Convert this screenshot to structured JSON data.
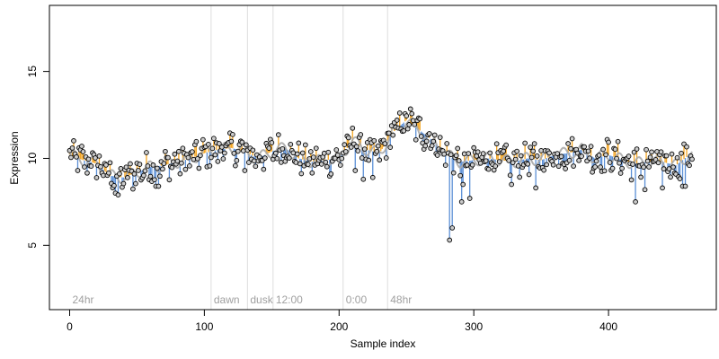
{
  "chart_data": {
    "type": "scatter",
    "title": "",
    "xlabel": "Sample index",
    "ylabel": "Expression",
    "xlim": [
      -15,
      480
    ],
    "ylim": [
      1.3,
      18.8
    ],
    "xticks": [
      0,
      100,
      200,
      300,
      400
    ],
    "yticks": [
      5,
      10,
      15
    ],
    "grid": false,
    "colors": {
      "above_line": "#f5a623",
      "below_line": "#5b8fd6",
      "smooth_line": "#a8a8a8",
      "divider": "#dddddd",
      "point_fill": "#cccccc",
      "point_stroke": "#000000"
    },
    "regions": [
      {
        "label": "24hr",
        "x": 0
      },
      {
        "label": "dawn",
        "x": 105
      },
      {
        "label": "dusk",
        "x": 132
      },
      {
        "label": "12:00",
        "x": 151
      },
      {
        "label": "0:00",
        "x": 203
      },
      {
        "label": "48hr",
        "x": 236
      }
    ],
    "trend": {
      "x": [
        0,
        10,
        20,
        30,
        40,
        50,
        60,
        70,
        80,
        90,
        100,
        110,
        120,
        130,
        140,
        150,
        160,
        170,
        180,
        190,
        200,
        210,
        220,
        230,
        240,
        250,
        260,
        270,
        280,
        290,
        300,
        310,
        320,
        330,
        340,
        350,
        360,
        370,
        380,
        390,
        400,
        410,
        420,
        430,
        440,
        450,
        460
      ],
      "y": [
        10.2,
        9.9,
        9.7,
        9.0,
        8.9,
        9.2,
        9.5,
        9.6,
        9.8,
        10.0,
        10.3,
        10.5,
        10.6,
        10.4,
        10.0,
        10.4,
        10.6,
        10.0,
        9.8,
        9.9,
        10.0,
        11.0,
        10.5,
        10.3,
        11.5,
        12.2,
        11.6,
        11.0,
        10.2,
        9.8,
        9.9,
        10.0,
        9.9,
        9.8,
        10.0,
        9.9,
        10.2,
        10.3,
        10.5,
        10.0,
        10.2,
        9.9,
        9.7,
        9.8,
        9.8,
        9.6,
        10.2
      ]
    },
    "spikes": [
      {
        "x": 130,
        "y": 9.3
      },
      {
        "x": 218,
        "y": 8.8
      },
      {
        "x": 282,
        "y": 5.3
      },
      {
        "x": 284,
        "y": 6.0
      },
      {
        "x": 291,
        "y": 7.5
      },
      {
        "x": 297,
        "y": 7.7
      },
      {
        "x": 292,
        "y": 8.5
      },
      {
        "x": 328,
        "y": 8.5
      },
      {
        "x": 346,
        "y": 8.3
      },
      {
        "x": 420,
        "y": 7.5
      },
      {
        "x": 427,
        "y": 8.2
      },
      {
        "x": 440,
        "y": 8.3
      },
      {
        "x": 455,
        "y": 8.4
      },
      {
        "x": 457,
        "y": 8.4
      },
      {
        "x": 64,
        "y": 8.4
      },
      {
        "x": 66,
        "y": 8.4
      },
      {
        "x": 34,
        "y": 8.0
      },
      {
        "x": 36,
        "y": 7.9
      },
      {
        "x": 225,
        "y": 8.9
      },
      {
        "x": 212,
        "y": 9.3
      }
    ],
    "n_points": 463,
    "series": [
      {
        "values_note": "",
        "kind": "observed"
      }
    ]
  }
}
